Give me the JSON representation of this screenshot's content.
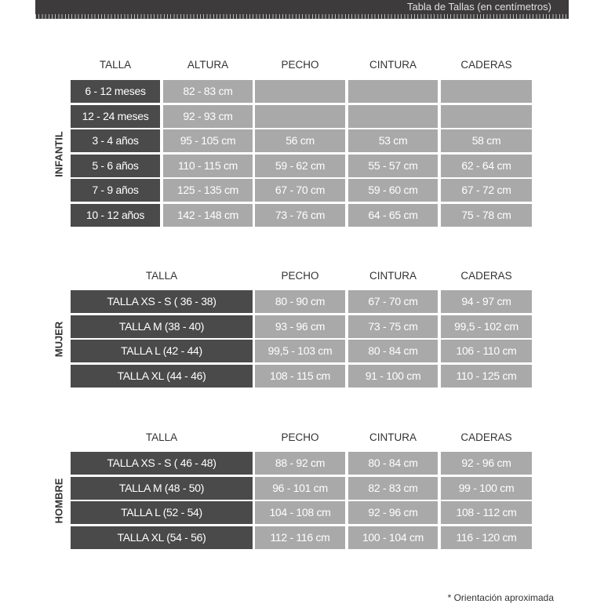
{
  "header": {
    "title": "Tabla de Tallas (en centímetros)"
  },
  "colors": {
    "dark": "#4a4a4a",
    "light": "#a9a9a9",
    "bar": "#3d3b3c"
  },
  "infantil": {
    "label": "INFANTIL",
    "headers": [
      "TALLA",
      "ALTURA",
      "PECHO",
      "CINTURA",
      "CADERAS"
    ],
    "rows": [
      [
        "6 - 12 meses",
        "82 - 83 cm",
        "",
        "",
        ""
      ],
      [
        "12 - 24 meses",
        "92 - 93 cm",
        "",
        "",
        ""
      ],
      [
        "3 - 4 años",
        "95 - 105 cm",
        "56 cm",
        "53 cm",
        "58 cm"
      ],
      [
        "5 - 6 años",
        "110 - 115 cm",
        "59 - 62 cm",
        "55 - 57 cm",
        "62 - 64 cm"
      ],
      [
        "7 - 9 años",
        "125 - 135 cm",
        "67 - 70 cm",
        "59 - 60 cm",
        "67 - 72 cm"
      ],
      [
        "10 - 12 años",
        "142 - 148 cm",
        "73 - 76 cm",
        "64 - 65 cm",
        "75 - 78 cm"
      ]
    ]
  },
  "mujer": {
    "label": "MUJER",
    "headers": [
      "TALLA",
      "PECHO",
      "CINTURA",
      "CADERAS"
    ],
    "rows": [
      [
        "TALLA XS - S ( 36 - 38)",
        "80 - 90 cm",
        "67 - 70 cm",
        "94 - 97 cm"
      ],
      [
        "TALLA M (38 - 40)",
        "93 - 96 cm",
        "73 - 75 cm",
        "99,5 - 102 cm"
      ],
      [
        "TALLA L (42 - 44)",
        "99,5 - 103 cm",
        "80 - 84 cm",
        "106 - 110 cm"
      ],
      [
        "TALLA XL (44 - 46)",
        "108 - 115 cm",
        "91 - 100 cm",
        "110 - 125 cm"
      ]
    ]
  },
  "hombre": {
    "label": "HOMBRE",
    "headers": [
      "TALLA",
      "PECHO",
      "CINTURA",
      "CADERAS"
    ],
    "rows": [
      [
        "TALLA XS - S ( 46 - 48)",
        "88 - 92 cm",
        "80 - 84 cm",
        "92 - 96 cm"
      ],
      [
        "TALLA M (48 - 50)",
        "96 - 101 cm",
        "82 - 83 cm",
        "99 - 100 cm"
      ],
      [
        "TALLA L (52 - 54)",
        "104 - 108 cm",
        "92 - 96 cm",
        "108 - 112 cm"
      ],
      [
        "TALLA XL (54 - 56)",
        "112 - 116 cm",
        "100 - 104 cm",
        "116 - 120 cm"
      ]
    ]
  },
  "footnote": "* Orientación aproximada"
}
